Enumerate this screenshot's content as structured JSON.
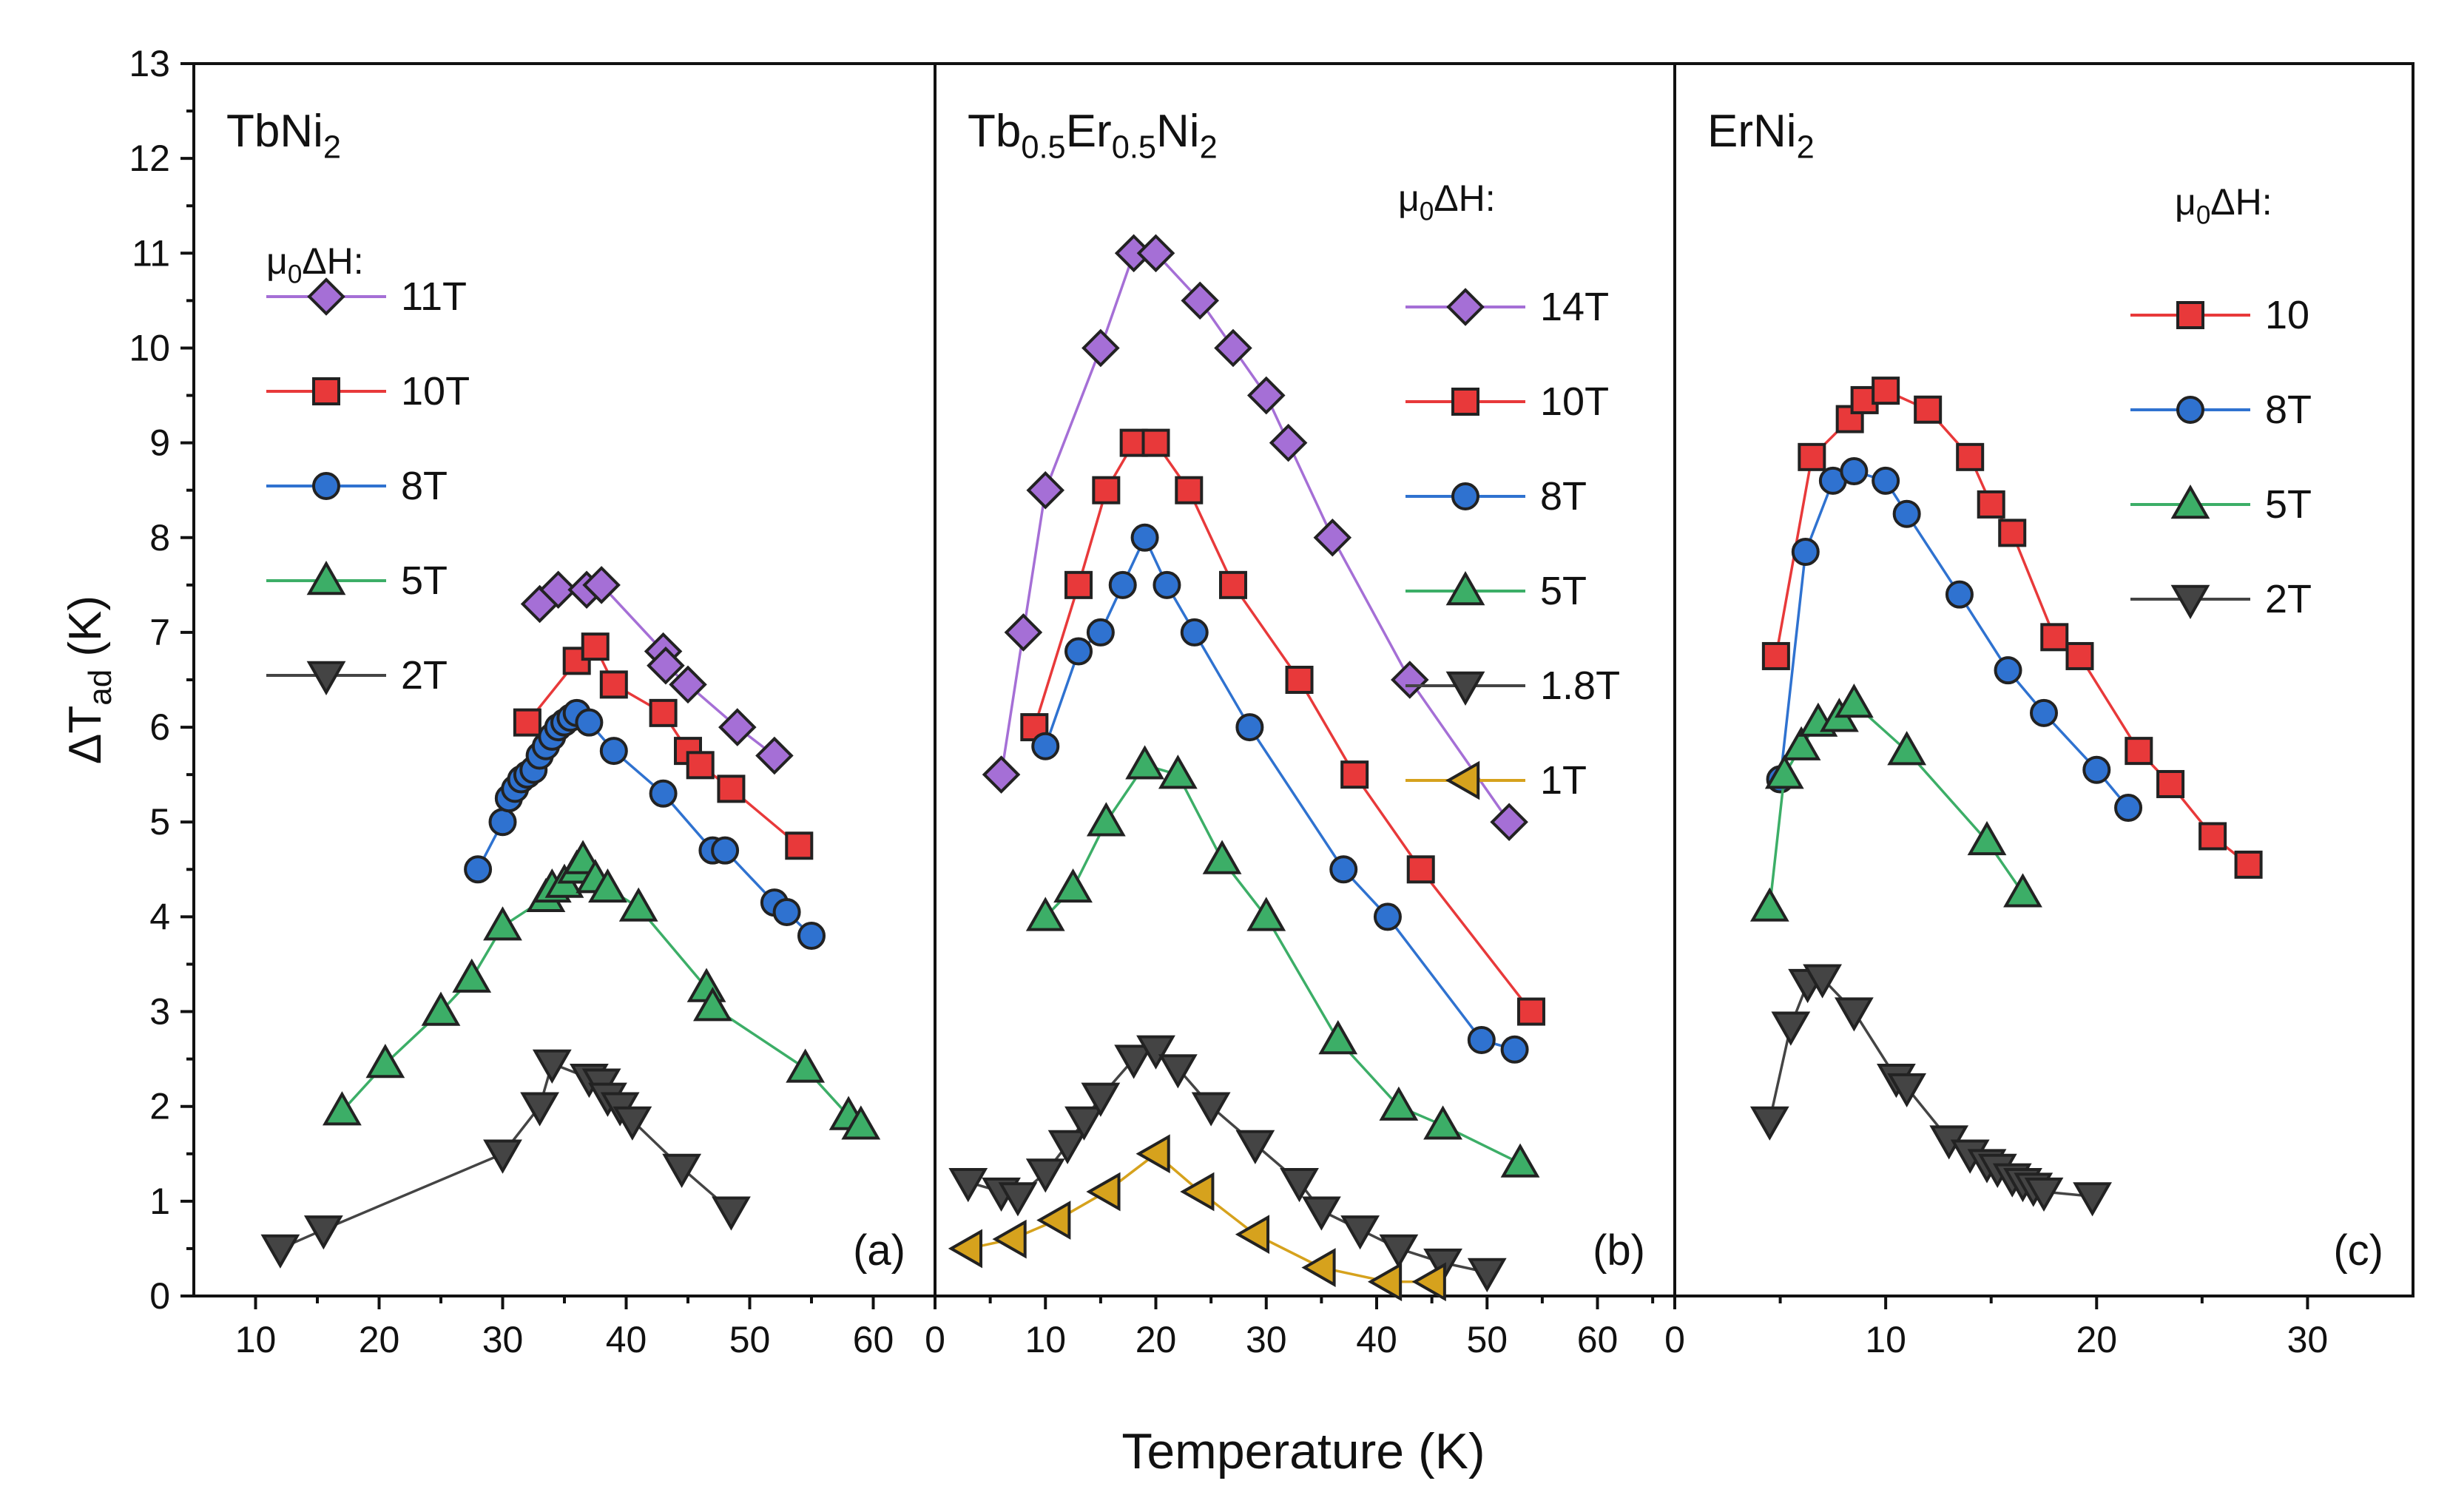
{
  "figure": {
    "ylabel_base": "ΔT",
    "ylabel_sub": "ad",
    "ylabel_unit": " (K)",
    "xlabel": "Temperature (K)"
  },
  "colors": {
    "purple": "#a56fd6",
    "red": "#e8393a",
    "blue": "#2f72d0",
    "green": "#3cae67",
    "dark": "#444444",
    "gold": "#d6a21d"
  },
  "chart_data": [
    {
      "type": "scatter",
      "panel_label": "(a)",
      "title_parts": [
        {
          "t": "TbNi"
        },
        {
          "t": "2",
          "sub": true
        }
      ],
      "legend_header": "μ0ΔH:",
      "legend_header_parts": [
        {
          "t": "μ"
        },
        {
          "t": "0",
          "sub": true
        },
        {
          "t": "ΔH:"
        }
      ],
      "xlim": [
        5,
        65
      ],
      "ylim": [
        0,
        13
      ],
      "xticks": [
        10,
        20,
        30,
        40,
        50,
        60
      ],
      "xtick_labels": [
        "10",
        "20",
        "30",
        "40",
        "50",
        "60"
      ],
      "yticks": [
        0,
        1,
        2,
        3,
        4,
        5,
        6,
        7,
        8,
        9,
        10,
        11,
        12,
        13
      ],
      "ytick_labels": [
        "0",
        "1",
        "2",
        "3",
        "4",
        "5",
        "6",
        "7",
        "8",
        "9",
        "10",
        "11",
        "12",
        "13"
      ],
      "series": [
        {
          "name": "11T",
          "color": "purple",
          "marker": "diamond",
          "x": [
            33,
            34.5,
            36.8,
            38,
            43,
            43.2,
            45,
            49,
            52
          ],
          "y": [
            7.3,
            7.45,
            7.45,
            7.5,
            6.8,
            6.65,
            6.45,
            6.0,
            5.7
          ]
        },
        {
          "name": "10T",
          "color": "red",
          "marker": "square",
          "x": [
            32,
            36,
            37.5,
            39,
            43,
            45,
            46,
            48.5,
            54
          ],
          "y": [
            6.05,
            6.7,
            6.85,
            6.45,
            6.15,
            5.75,
            5.6,
            5.35,
            4.75
          ]
        },
        {
          "name": "8T",
          "color": "blue",
          "marker": "circle",
          "x": [
            28,
            30,
            30.5,
            31,
            31.5,
            32,
            32.5,
            33,
            33.5,
            34,
            34.5,
            35,
            35.5,
            36,
            37,
            39,
            43,
            47,
            48,
            52,
            53,
            55
          ],
          "y": [
            4.5,
            5.0,
            5.25,
            5.35,
            5.45,
            5.5,
            5.55,
            5.7,
            5.8,
            5.9,
            6.0,
            6.05,
            6.1,
            6.15,
            6.05,
            5.75,
            5.3,
            4.7,
            4.7,
            4.15,
            4.05,
            3.8
          ]
        },
        {
          "name": "5T",
          "color": "green",
          "marker": "triangle-up",
          "x": [
            17,
            20.5,
            25,
            27.5,
            30,
            33.5,
            34,
            35,
            36,
            36.5,
            37.5,
            38.5,
            41,
            46.5,
            47,
            54.5,
            58,
            59
          ],
          "y": [
            1.95,
            2.45,
            3.0,
            3.35,
            3.9,
            4.2,
            4.3,
            4.35,
            4.5,
            4.6,
            4.4,
            4.3,
            4.1,
            3.25,
            3.05,
            2.4,
            1.9,
            1.8
          ]
        },
        {
          "name": "2T",
          "color": "dark",
          "marker": "triangle-down",
          "x": [
            12,
            15.5,
            30,
            33,
            34,
            37,
            38,
            38.5,
            39.5,
            40.5,
            44.5,
            48.5
          ],
          "y": [
            0.5,
            0.7,
            1.5,
            2.0,
            2.45,
            2.3,
            2.25,
            2.1,
            2.0,
            1.85,
            1.35,
            0.9
          ]
        }
      ]
    },
    {
      "type": "scatter",
      "panel_label": "(b)",
      "title_parts": [
        {
          "t": "Tb"
        },
        {
          "t": "0.5",
          "sub": true
        },
        {
          "t": "Er"
        },
        {
          "t": "0.5",
          "sub": true
        },
        {
          "t": "Ni"
        },
        {
          "t": "2",
          "sub": true
        }
      ],
      "legend_header": "μ0ΔH:",
      "legend_header_parts": [
        {
          "t": "μ"
        },
        {
          "t": "0",
          "sub": true
        },
        {
          "t": "ΔH:"
        }
      ],
      "xlim": [
        0,
        67
      ],
      "ylim": [
        0,
        13
      ],
      "xticks": [
        0,
        10,
        20,
        30,
        40,
        50,
        60
      ],
      "xtick_labels": [
        "0",
        "10",
        "20",
        "30",
        "40",
        "50",
        "60"
      ],
      "yticks": [],
      "ytick_labels": [],
      "series": [
        {
          "name": "14T",
          "color": "purple",
          "marker": "diamond",
          "x": [
            6,
            8,
            10,
            15,
            18,
            20,
            24,
            27,
            30,
            32,
            36,
            43,
            52
          ],
          "y": [
            5.5,
            7.0,
            8.5,
            10.0,
            11.0,
            11.0,
            10.5,
            10.0,
            9.5,
            9.0,
            8.0,
            6.5,
            5.0
          ]
        },
        {
          "name": "10T",
          "color": "red",
          "marker": "square",
          "x": [
            9,
            13,
            15.5,
            18,
            20,
            23,
            27,
            33,
            38,
            44,
            54
          ],
          "y": [
            6.0,
            7.5,
            8.5,
            9.0,
            9.0,
            8.5,
            7.5,
            6.5,
            5.5,
            4.5,
            3.0
          ]
        },
        {
          "name": "8T",
          "color": "blue",
          "marker": "circle",
          "x": [
            10,
            13,
            15,
            17,
            19,
            21,
            23.5,
            28.5,
            37,
            41,
            49.5,
            52.5
          ],
          "y": [
            5.8,
            6.8,
            7.0,
            7.5,
            8.0,
            7.5,
            7.0,
            6.0,
            4.5,
            4.0,
            2.7,
            2.6
          ]
        },
        {
          "name": "5T",
          "color": "green",
          "marker": "triangle-up",
          "x": [
            10,
            12.5,
            15.5,
            19,
            22,
            26,
            30,
            36.5,
            42,
            46,
            53
          ],
          "y": [
            4.0,
            4.3,
            5.0,
            5.6,
            5.5,
            4.6,
            4.0,
            2.7,
            2.0,
            1.8,
            1.4
          ]
        },
        {
          "name": "1.8T",
          "color": "dark",
          "marker": "triangle-down",
          "x": [
            3,
            6,
            7.5,
            10,
            12,
            13.5,
            15,
            18,
            20,
            22,
            25,
            29,
            33,
            35,
            38.5,
            42,
            46,
            50
          ],
          "y": [
            1.2,
            1.1,
            1.05,
            1.3,
            1.6,
            1.85,
            2.1,
            2.5,
            2.6,
            2.4,
            2.0,
            1.6,
            1.2,
            0.9,
            0.7,
            0.5,
            0.35,
            0.25
          ]
        },
        {
          "name": "1T",
          "color": "gold",
          "marker": "triangle-left",
          "x": [
            3,
            7,
            11,
            15.5,
            20,
            24,
            29,
            35,
            41,
            45
          ],
          "y": [
            0.5,
            0.6,
            0.8,
            1.1,
            1.5,
            1.1,
            0.65,
            0.3,
            0.15,
            0.15
          ]
        }
      ]
    },
    {
      "type": "scatter",
      "panel_label": "(c)",
      "title_parts": [
        {
          "t": "ErNi"
        },
        {
          "t": "2",
          "sub": true
        }
      ],
      "legend_header": "μ0ΔH:",
      "legend_header_parts": [
        {
          "t": "μ"
        },
        {
          "t": "0",
          "sub": true
        },
        {
          "t": "ΔH:"
        }
      ],
      "xlim": [
        0,
        35
      ],
      "ylim": [
        0,
        13
      ],
      "xticks": [
        0,
        10,
        20,
        30
      ],
      "xtick_labels": [
        "0",
        "10",
        "20",
        "30"
      ],
      "yticks": [],
      "ytick_labels": [],
      "series": [
        {
          "name": "10",
          "color": "red",
          "marker": "square",
          "x": [
            4.8,
            6.5,
            8.3,
            9,
            10,
            12,
            14,
            15,
            16,
            18,
            19.2,
            22,
            23.5,
            25.5,
            27.2
          ],
          "y": [
            6.75,
            8.85,
            9.25,
            9.45,
            9.55,
            9.35,
            8.85,
            8.35,
            8.05,
            6.95,
            6.75,
            5.75,
            5.4,
            4.85,
            4.55
          ]
        },
        {
          "name": "8T",
          "color": "blue",
          "marker": "circle",
          "x": [
            5,
            6.2,
            7.5,
            8.5,
            10,
            11,
            13.5,
            15.8,
            17.5,
            20,
            21.5
          ],
          "y": [
            5.45,
            7.85,
            8.6,
            8.7,
            8.6,
            8.25,
            7.4,
            6.6,
            6.15,
            5.55,
            5.15
          ]
        },
        {
          "name": "5T",
          "color": "green",
          "marker": "triangle-up",
          "x": [
            4.5,
            5.2,
            6,
            6.8,
            7.8,
            8.5,
            11,
            14.8,
            16.5
          ],
          "y": [
            4.1,
            5.5,
            5.8,
            6.05,
            6.1,
            6.25,
            5.75,
            4.8,
            4.25
          ]
        },
        {
          "name": "2T",
          "color": "dark",
          "marker": "triangle-down",
          "x": [
            4.5,
            5.5,
            6.3,
            7,
            8.5,
            10.5,
            11,
            13,
            14,
            14.8,
            15.3,
            16,
            16.5,
            17,
            17.5,
            19.8
          ],
          "y": [
            1.85,
            2.85,
            3.3,
            3.35,
            3.0,
            2.3,
            2.2,
            1.65,
            1.5,
            1.4,
            1.35,
            1.25,
            1.2,
            1.15,
            1.1,
            1.05
          ]
        }
      ]
    }
  ]
}
